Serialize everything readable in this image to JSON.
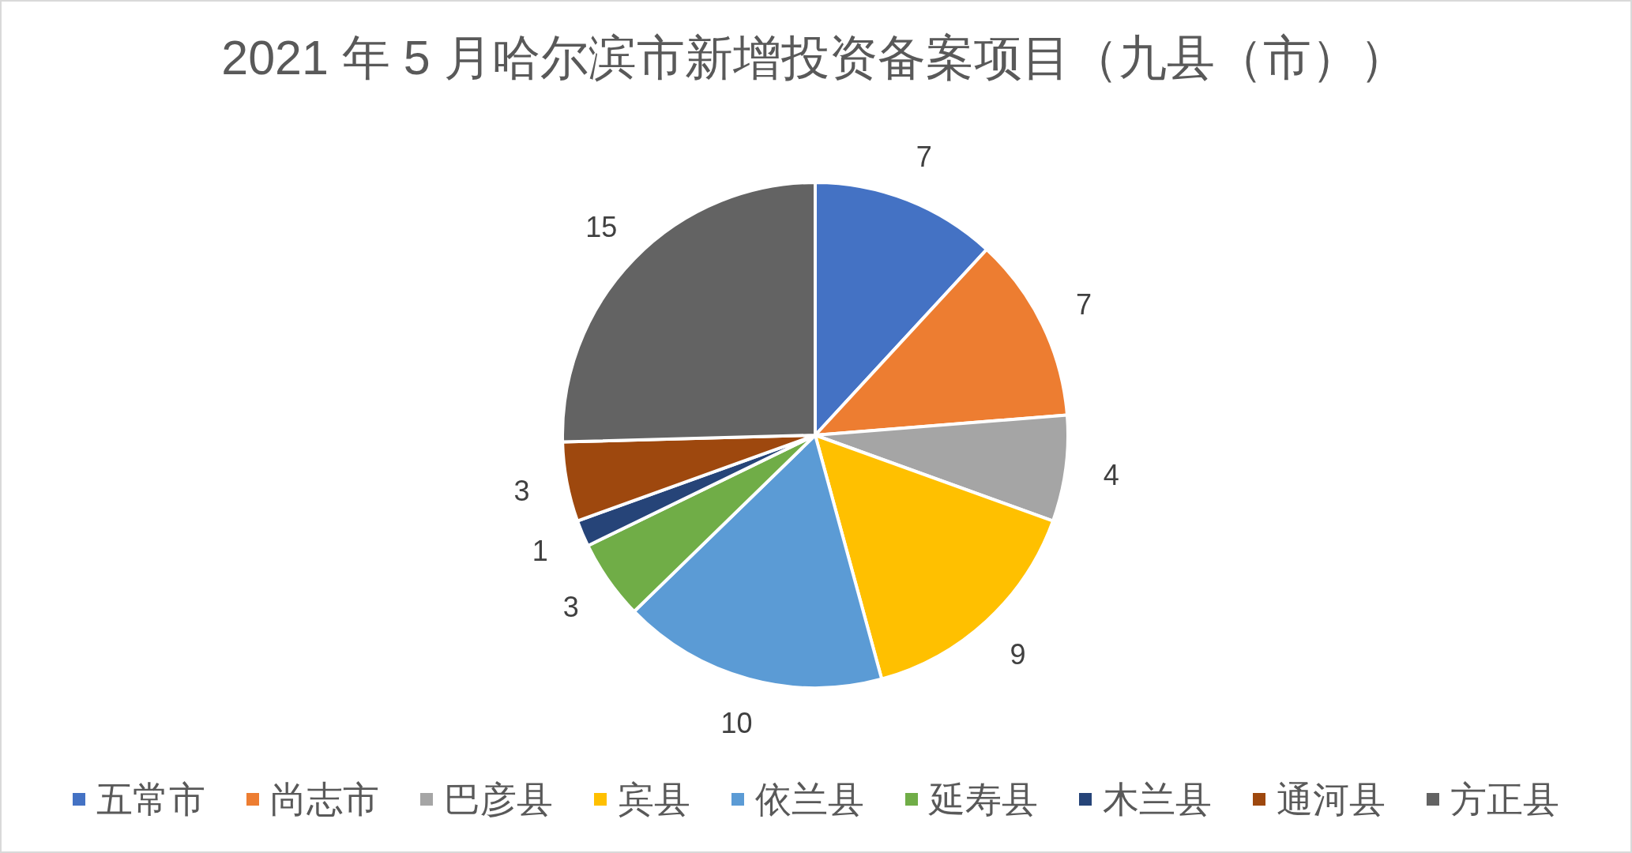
{
  "chart_data": {
    "type": "pie",
    "title": "2021 年 5 月哈尔滨市新增投资备案项目（九县（市））",
    "categories": [
      "五常市",
      "尚志市",
      "巴彦县",
      "宾县",
      "依兰县",
      "延寿县",
      "木兰县",
      "通河县",
      "方正县"
    ],
    "values": [
      7,
      7,
      4,
      9,
      10,
      3,
      1,
      3,
      15
    ],
    "colors": [
      "#4472c4",
      "#ed7d31",
      "#a5a5a5",
      "#ffc000",
      "#5b9bd5",
      "#70ad47",
      "#264478",
      "#9e480e",
      "#636363"
    ],
    "data_labels": true,
    "legend": "bottom"
  }
}
